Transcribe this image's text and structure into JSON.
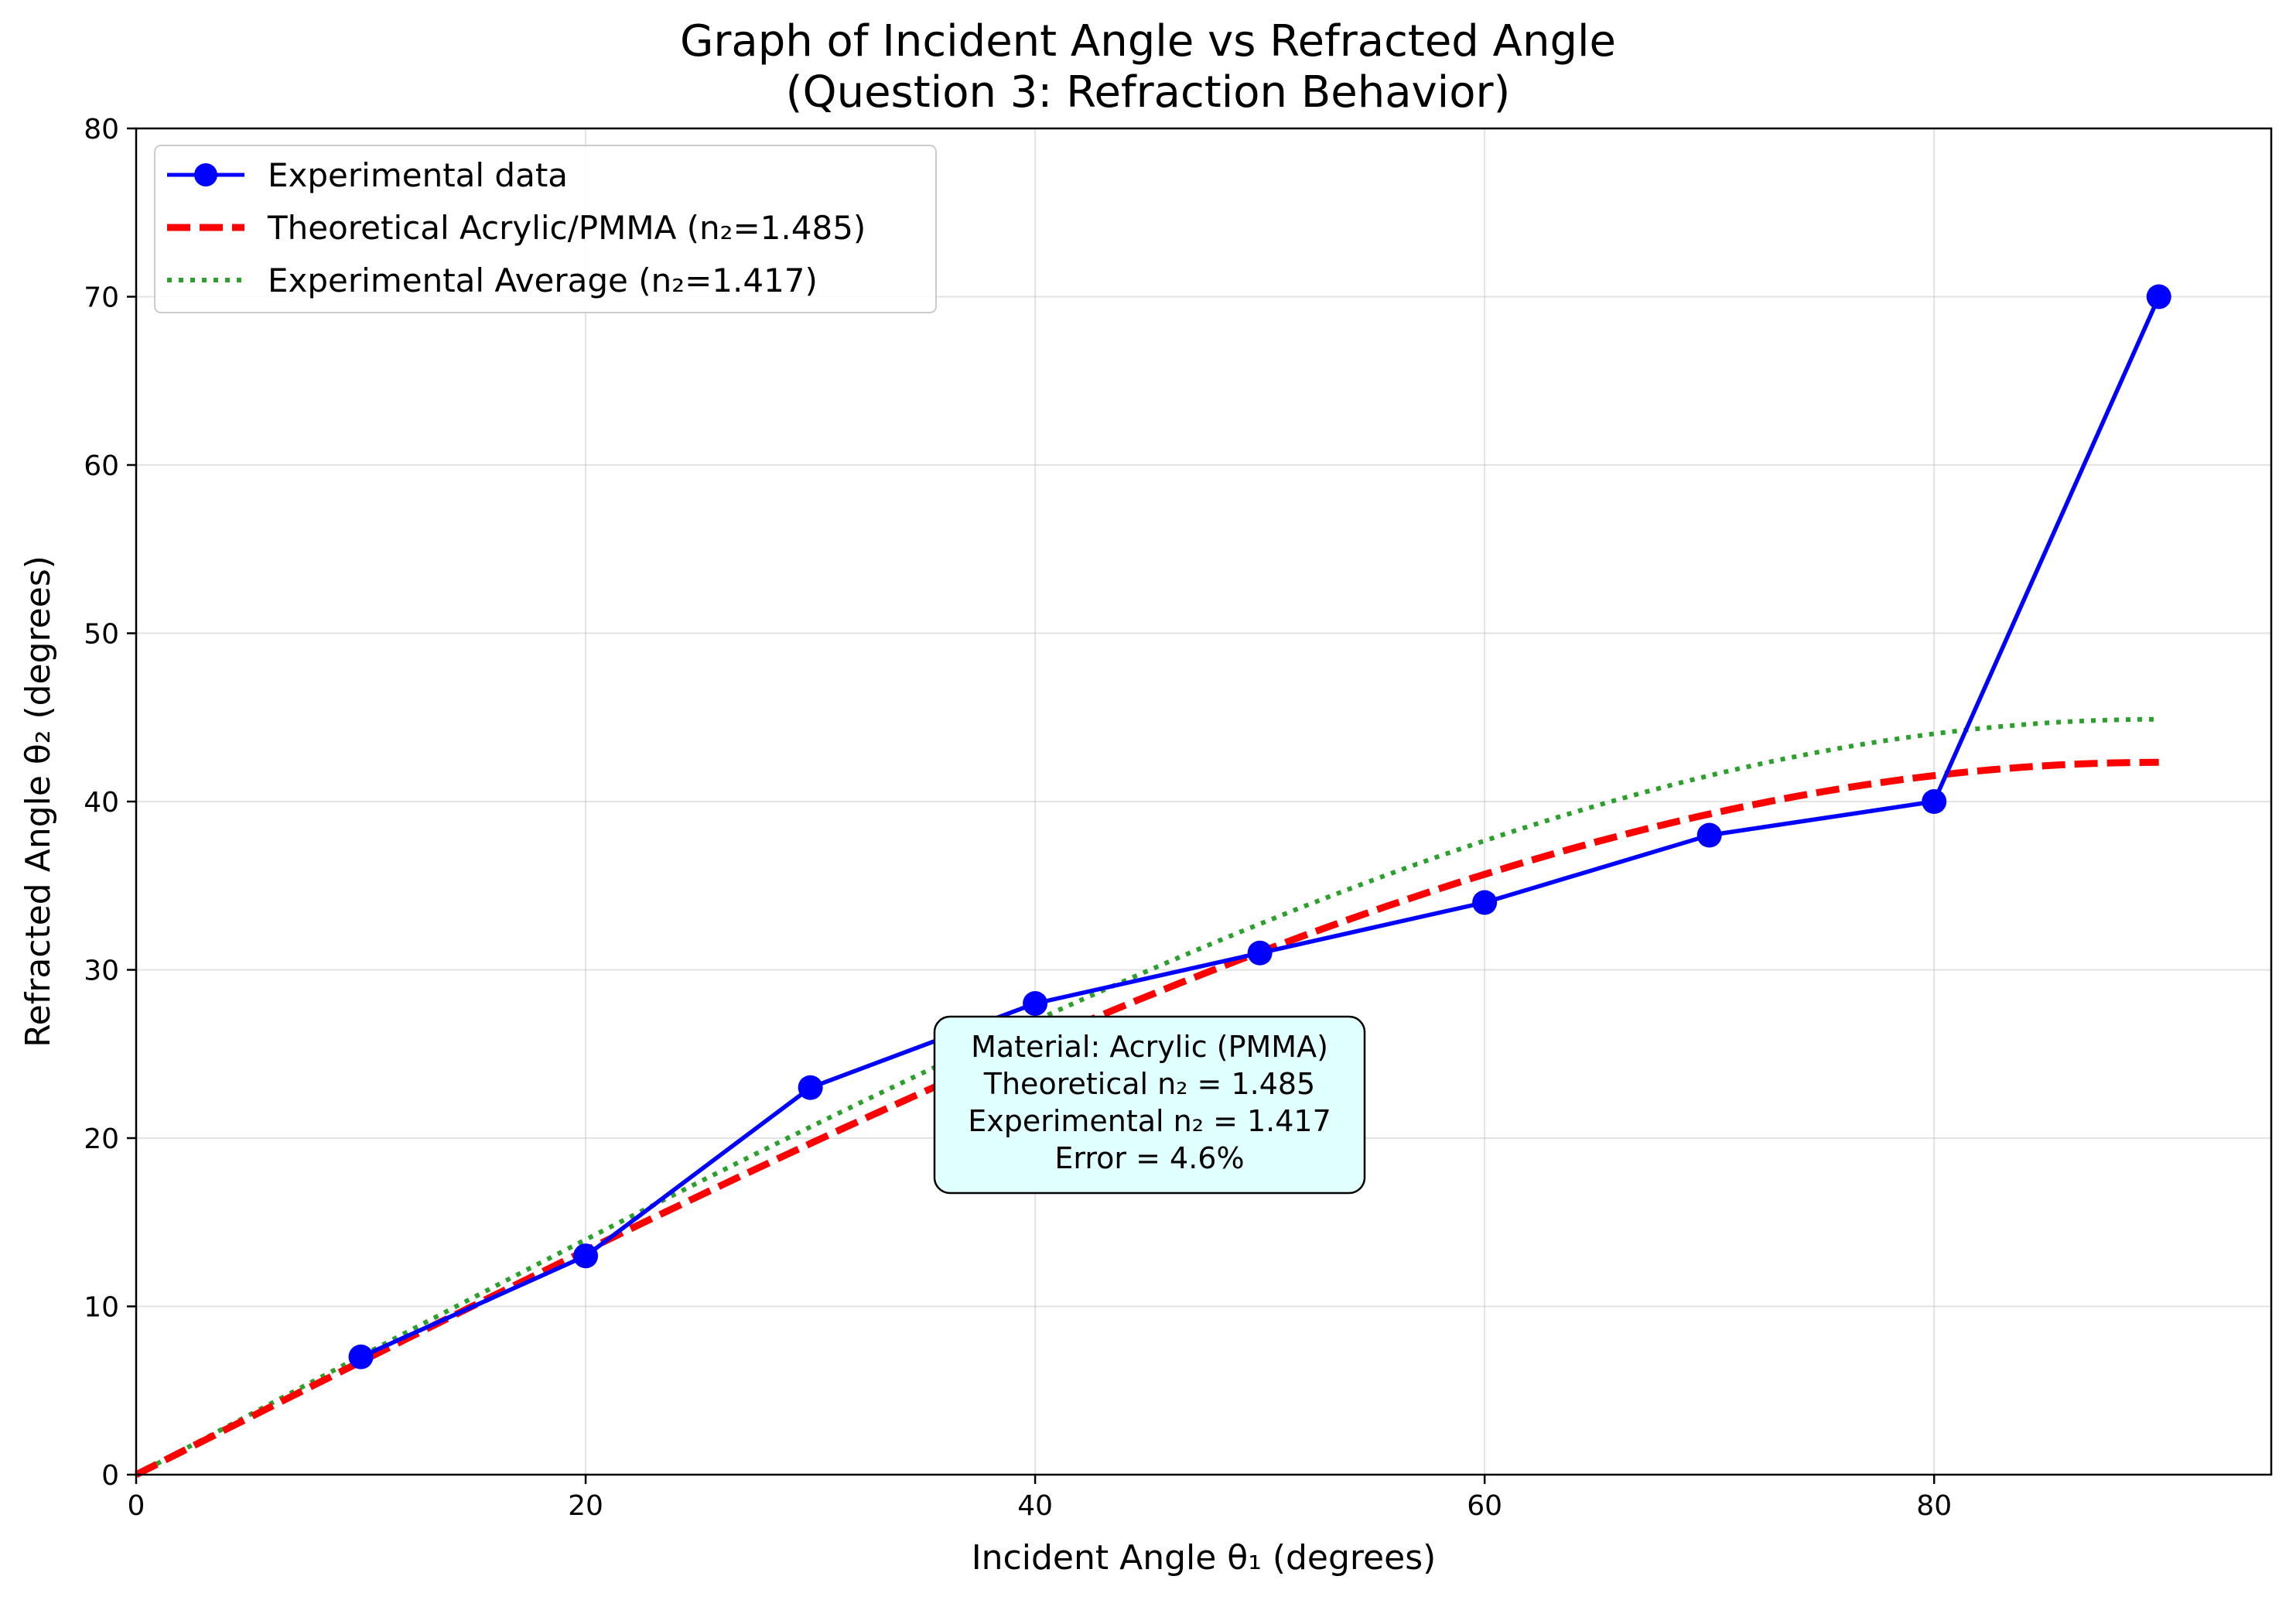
{
  "chart_data": {
    "type": "line",
    "title": "Graph of Incident Angle vs Refracted Angle",
    "subtitle": "(Question 3: Refraction Behavior)",
    "xlabel": "Incident Angle θ₁ (degrees)",
    "ylabel": "Refracted Angle θ₂ (degrees)",
    "xlim": [
      0,
      95
    ],
    "ylim": [
      0,
      80
    ],
    "xticks": [
      0,
      20,
      40,
      60,
      80
    ],
    "yticks": [
      0,
      10,
      20,
      30,
      40,
      50,
      60,
      70,
      80
    ],
    "grid": true,
    "legend_position": "top-left",
    "series": [
      {
        "name": "Experimental data",
        "style": "solid-markers",
        "color": "#0000ff",
        "x": [
          10,
          20,
          30,
          40,
          50,
          60,
          70,
          80,
          90
        ],
        "y": [
          7,
          13,
          23,
          28,
          31,
          34,
          38,
          40,
          70
        ]
      },
      {
        "name": "Theoretical Acrylic/PMMA (n₂=1.485)",
        "style": "dashed",
        "color": "#ff0000",
        "n2": 1.485,
        "x_range": [
          0,
          90
        ]
      },
      {
        "name": "Experimental Average (n₂=1.417)",
        "style": "dotted",
        "color": "#2ca02c",
        "n2": 1.417,
        "x_range": [
          0,
          90
        ]
      }
    ],
    "annotation": {
      "lines": [
        "Material: Acrylic (PMMA)",
        "Theoretical n₂ = 1.485",
        "Experimental n₂ = 1.417",
        "Error = 4.6%"
      ],
      "background": "#e0ffff"
    }
  }
}
